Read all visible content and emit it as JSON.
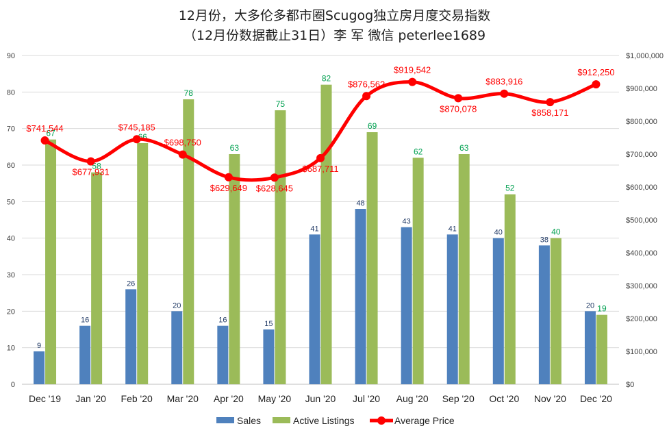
{
  "chart_data": {
    "type": "bar",
    "title": "12月份，大多伦多都市圈Scugog独立房月度交易指数",
    "subtitle": "（12月份数据截止31日）李 军  微信  peterlee1689",
    "categories": [
      "Dec '19",
      "Jan '20",
      "Feb '20",
      "Mar '20",
      "Apr '20",
      "May '20",
      "Jun '20",
      "Jul '20",
      "Aug '20",
      "Sep '20",
      "Oct '20",
      "Nov '20",
      "Dec '20"
    ],
    "series": [
      {
        "name": "Sales",
        "type": "bar",
        "axis": "left",
        "color": "#4f81bd",
        "label_color": "#1f3864",
        "values": [
          9,
          16,
          26,
          20,
          16,
          15,
          41,
          48,
          43,
          41,
          40,
          38,
          20
        ]
      },
      {
        "name": "Active Listings",
        "type": "bar",
        "axis": "left",
        "color": "#9bbb59",
        "label_color": "#00a050",
        "values": [
          67,
          58,
          66,
          78,
          63,
          75,
          82,
          69,
          62,
          63,
          52,
          40,
          19
        ]
      },
      {
        "name": "Average Price",
        "type": "line",
        "axis": "right",
        "color": "#ff0000",
        "values": [
          741544,
          677931,
          745185,
          698750,
          629649,
          628645,
          687711,
          876562,
          919542,
          870078,
          883916,
          858171,
          912250
        ],
        "labels": [
          "$741,544",
          "$677,931",
          "$745,185",
          "$698,750",
          "$629,649",
          "$628,645",
          "$687,711",
          "$876,562",
          "$919,542",
          "$870,078",
          "$883,916",
          "$858,171",
          "$912,250"
        ]
      }
    ],
    "y_left": {
      "range": [
        0,
        90
      ],
      "ticks": [
        "0",
        "10",
        "20",
        "30",
        "40",
        "50",
        "60",
        "70",
        "80",
        "90"
      ]
    },
    "y_right": {
      "range": [
        0,
        1000000
      ],
      "ticks": [
        "$0",
        "$100,000",
        "$200,000",
        "$300,000",
        "$400,000",
        "$500,000",
        "$600,000",
        "$700,000",
        "$800,000",
        "$900,000",
        "$1,000,000"
      ]
    },
    "grid": true,
    "legend_position": "bottom"
  }
}
